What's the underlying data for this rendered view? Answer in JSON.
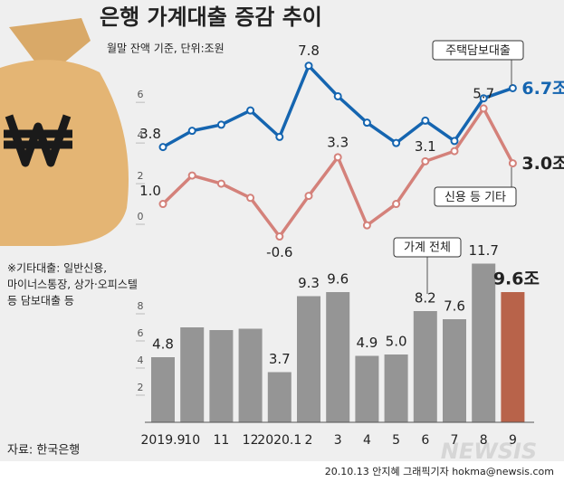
{
  "chart_data": [
    {
      "type": "line",
      "title": "은행 가계대출 증감 추이",
      "subtitle": "월말 잔액 기준, 단위:조원",
      "ylim": [
        -1,
        8.5
      ],
      "yticks": [
        0,
        2,
        4,
        6
      ],
      "series": [
        {
          "name": "주택담보대출",
          "color": "#1565b0",
          "values": [
            3.8,
            4.6,
            4.9,
            5.6,
            4.3,
            7.8,
            6.3,
            5.0,
            4.0,
            5.1,
            4.1,
            6.2,
            6.7
          ],
          "value_labels": [
            "3.8",
            null,
            null,
            null,
            null,
            "7.8",
            null,
            null,
            null,
            null,
            null,
            null,
            "6.7조"
          ]
        },
        {
          "name": "신용 등 기타",
          "color": "#d4817a",
          "values": [
            1.0,
            2.4,
            2.0,
            1.3,
            -0.6,
            1.4,
            3.3,
            -0.05,
            1.0,
            3.1,
            3.6,
            5.7,
            3.0
          ],
          "value_labels": [
            "1.0",
            null,
            null,
            null,
            "-0.6",
            null,
            "3.3",
            null,
            null,
            "3.1",
            null,
            "5.7",
            "3.0조"
          ]
        }
      ]
    },
    {
      "type": "bar",
      "name": "가계 전체",
      "categories": [
        "2019.9",
        "10",
        "11",
        "12",
        "2020.1",
        "2",
        "3",
        "4",
        "5",
        "6",
        "7",
        "8",
        "9"
      ],
      "values": [
        4.8,
        7.0,
        6.8,
        6.9,
        3.7,
        9.3,
        9.6,
        4.9,
        5.0,
        8.2,
        7.6,
        11.7,
        9.6
      ],
      "value_labels": [
        "4.8",
        null,
        null,
        null,
        "3.7",
        "9.3",
        "9.6",
        "4.9",
        "5.0",
        "8.2",
        "7.6",
        "11.7",
        "9.6조"
      ],
      "colors": [
        "#959595",
        "#959595",
        "#959595",
        "#959595",
        "#959595",
        "#959595",
        "#959595",
        "#959595",
        "#959595",
        "#959595",
        "#959595",
        "#959595",
        "#b8634a"
      ],
      "ylim": [
        0,
        12
      ],
      "yticks": [
        2,
        4,
        6,
        8
      ]
    }
  ],
  "note": [
    "※기타대출: 일반신용,",
    "마이너스통장, 상가·오피스텔",
    "등 담보대출 등"
  ],
  "source": "자료: 한국은행",
  "credit": "20.10.13 안지혜 그래픽기자 hokma@newsis.com",
  "watermark": "NEWSIS"
}
